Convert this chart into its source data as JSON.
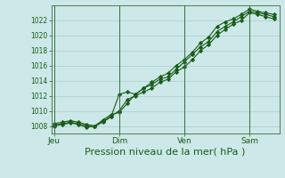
{
  "title": "Pression niveau de la mer( hPa )",
  "bg_color": "#cce8e8",
  "grid_color": "#aacccc",
  "line_color": "#1a5c1a",
  "marker_color": "#1a5c1a",
  "ylim": [
    1007.0,
    1024.0
  ],
  "yticks": [
    1008,
    1010,
    1012,
    1014,
    1016,
    1018,
    1020,
    1022
  ],
  "xtick_labels": [
    "Jeu",
    "Dim",
    "Ven",
    "Sam"
  ],
  "xtick_positions": [
    0,
    48,
    96,
    144
  ],
  "vline_positions": [
    0,
    48,
    96,
    144
  ],
  "xlim": [
    -2,
    166
  ],
  "series1_x": [
    0,
    6,
    12,
    18,
    24,
    30,
    36,
    42,
    48,
    54,
    60,
    66,
    72,
    78,
    84,
    90,
    96,
    102,
    108,
    114,
    120,
    126,
    132,
    138,
    144,
    150,
    156,
    162
  ],
  "series1_y": [
    1008.3,
    1008.5,
    1008.7,
    1008.5,
    1008.2,
    1008.0,
    1008.8,
    1009.5,
    1009.8,
    1011.0,
    1012.2,
    1013.0,
    1013.5,
    1014.2,
    1014.5,
    1015.5,
    1016.5,
    1017.5,
    1018.5,
    1019.2,
    1020.5,
    1021.2,
    1021.8,
    1022.5,
    1023.2,
    1023.0,
    1022.8,
    1022.5
  ],
  "series2_x": [
    0,
    6,
    12,
    18,
    24,
    30,
    36,
    42,
    48,
    54,
    60,
    66,
    72,
    78,
    84,
    90,
    96,
    102,
    108,
    114,
    120,
    126,
    132,
    138,
    144,
    150,
    156,
    162
  ],
  "series2_y": [
    1008.0,
    1008.2,
    1008.4,
    1008.2,
    1007.8,
    1008.0,
    1008.5,
    1009.2,
    1012.2,
    1012.5,
    1012.2,
    1013.0,
    1013.8,
    1014.5,
    1015.0,
    1016.0,
    1016.8,
    1017.8,
    1019.0,
    1019.8,
    1021.2,
    1021.8,
    1022.2,
    1022.8,
    1023.5,
    1023.2,
    1023.0,
    1022.8
  ],
  "series3_x": [
    0,
    6,
    12,
    18,
    24,
    30,
    36,
    42,
    48,
    54,
    60,
    66,
    72,
    78,
    84,
    90,
    96,
    102,
    108,
    114,
    120,
    126,
    132,
    138,
    144,
    150,
    156,
    162
  ],
  "series3_y": [
    1008.1,
    1008.3,
    1008.5,
    1008.3,
    1008.0,
    1007.9,
    1008.6,
    1009.3,
    1010.0,
    1011.5,
    1012.0,
    1012.5,
    1013.0,
    1013.8,
    1014.2,
    1015.2,
    1015.8,
    1016.8,
    1018.0,
    1018.8,
    1020.0,
    1020.8,
    1021.5,
    1022.0,
    1023.0,
    1022.8,
    1022.5,
    1022.2
  ]
}
